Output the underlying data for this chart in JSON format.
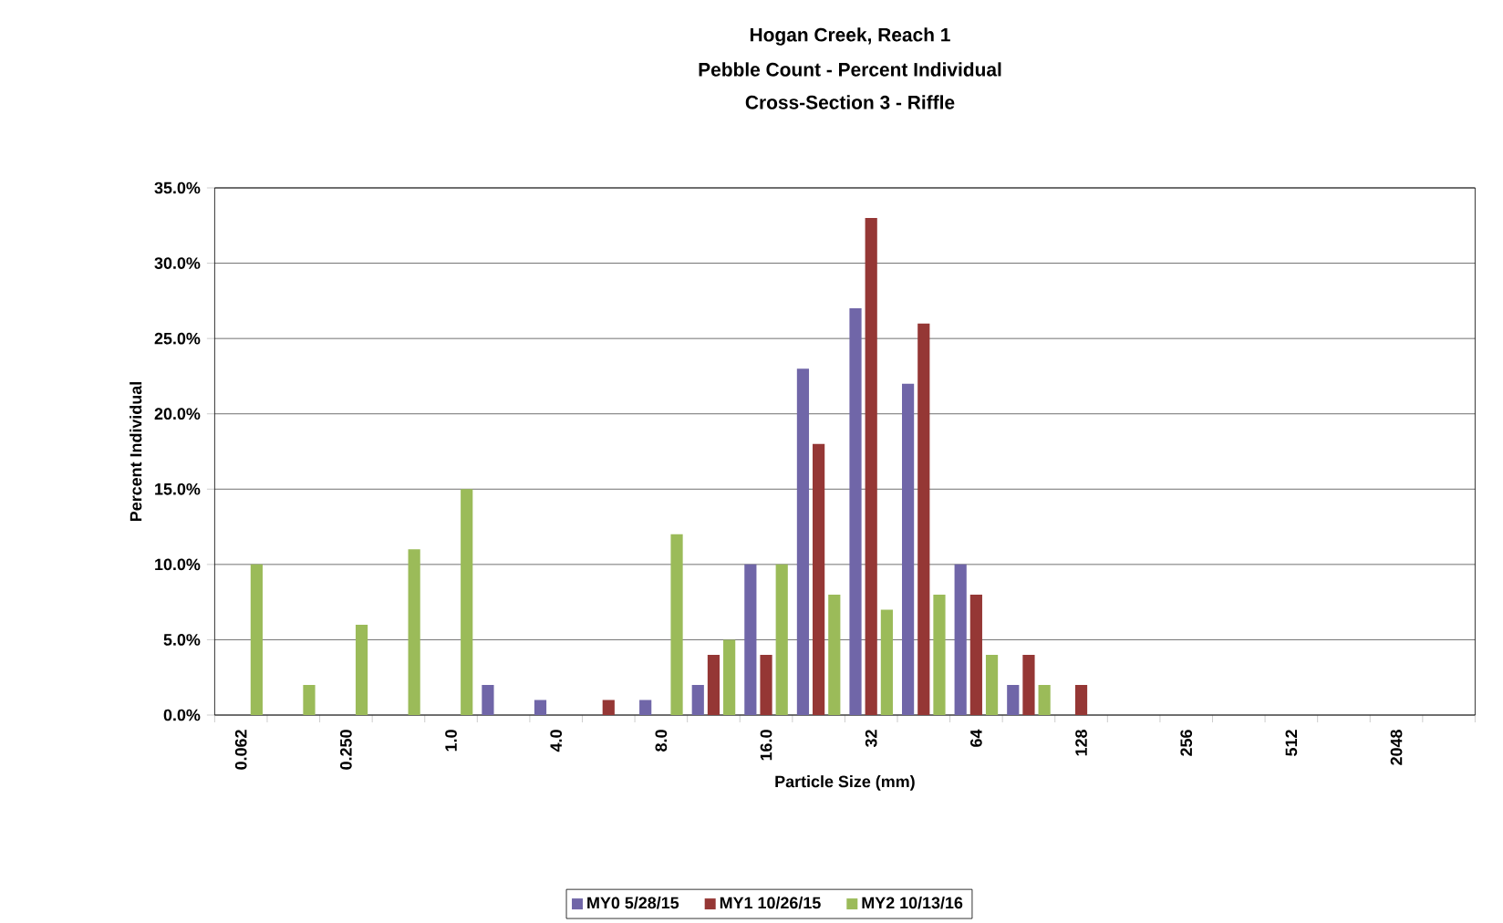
{
  "chart_data": {
    "type": "bar",
    "title": "Hogan Creek, Reach 1",
    "subtitle": "Pebble Count - Percent Individual",
    "annotations": [
      "Cross-Section 3 - Riffle"
    ],
    "xlabel": "Particle Size (mm)",
    "ylabel": "Percent Individual",
    "categories": [
      "0.062",
      null,
      "0.250",
      null,
      "1.0",
      null,
      "4.0",
      null,
      "8.0",
      null,
      "16.0",
      null,
      "32",
      null,
      "64",
      null,
      "128",
      null,
      "256",
      null,
      "512",
      null,
      "2048",
      null
    ],
    "series": [
      {
        "name": "MY0 5/28/15",
        "color": "#7066a8",
        "values": [
          0,
          0,
          0,
          0,
          0,
          2,
          1,
          0,
          1,
          2,
          10,
          23,
          27,
          22,
          10,
          2,
          0,
          0,
          0,
          0,
          0,
          0,
          0,
          0
        ]
      },
      {
        "name": "MY1 10/26/15",
        "color": "#953735",
        "values": [
          0,
          0,
          0,
          0,
          0,
          0,
          0,
          1,
          0,
          4,
          4,
          18,
          33,
          26,
          8,
          4,
          2,
          0,
          0,
          0,
          0,
          0,
          0,
          0
        ]
      },
      {
        "name": "MY2 10/13/16",
        "color": "#9bbb59",
        "values": [
          10,
          2,
          6,
          11,
          15,
          0,
          0,
          0,
          12,
          5,
          10,
          8,
          7,
          8,
          4,
          2,
          0,
          0,
          0,
          0,
          0,
          0,
          0,
          0
        ]
      }
    ],
    "ylim": [
      0,
      35
    ],
    "yticks": [
      {
        "value": 0,
        "label": "0.0%"
      },
      {
        "value": 5,
        "label": "5.0%"
      },
      {
        "value": 10,
        "label": "10.0%"
      },
      {
        "value": 15,
        "label": "15.0%"
      },
      {
        "value": 20,
        "label": "20.0%"
      },
      {
        "value": 25,
        "label": "25.0%"
      },
      {
        "value": 30,
        "label": "30.0%"
      },
      {
        "value": 35,
        "label": "35.0%"
      }
    ],
    "grid": "y",
    "legend": "bottom"
  }
}
